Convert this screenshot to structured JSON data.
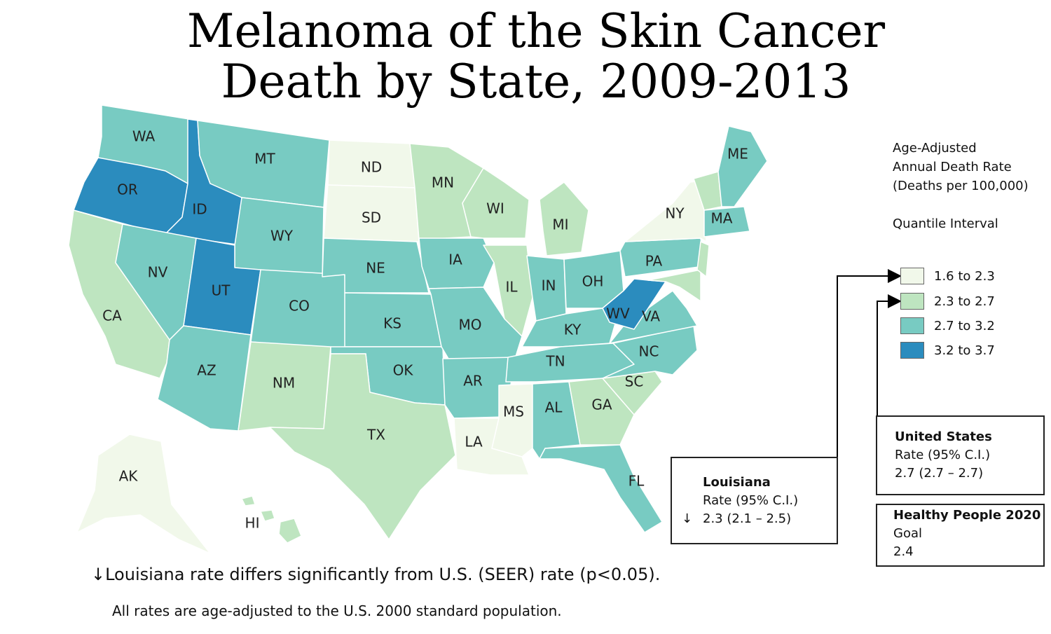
{
  "title": {
    "line1": "Melanoma of the Skin Cancer",
    "line2": "Death by State, 2009-2013"
  },
  "legend": {
    "title_line1": "Age-Adjusted",
    "title_line2": "Annual Death Rate",
    "title_line3": "(Deaths per 100,000)",
    "interval_label": "Quantile Interval",
    "classes": [
      {
        "label": "1.6 to 2.3",
        "color": "#f1f8ea"
      },
      {
        "label": "2.3 to 2.7",
        "color": "#bee5c0"
      },
      {
        "label": "2.7 to 3.2",
        "color": "#78cbc2"
      },
      {
        "label": "3.2 to 3.7",
        "color": "#2b8cbe"
      }
    ]
  },
  "louisiana_box": {
    "heading": "Louisiana",
    "rate_label": "Rate (95% C.I.)",
    "arrow": "↓",
    "value": "2.3 (2.1 – 2.5)"
  },
  "us_box": {
    "heading": "United States",
    "rate_label": "Rate (95% C.I.)",
    "value": "2.7 (2.7 – 2.7)"
  },
  "hp_box": {
    "heading": "Healthy People 2020",
    "goal_label": "Goal",
    "value": "2.4"
  },
  "footnotes": {
    "significance": "↓Louisiana rate differs significantly from U.S. (SEER) rate (p<0.05).",
    "standard": "All rates are age-adjusted to the U.S. 2000 standard population."
  },
  "states": [
    {
      "abbr": "WA",
      "class": 2
    },
    {
      "abbr": "OR",
      "class": 3
    },
    {
      "abbr": "CA",
      "class": 1
    },
    {
      "abbr": "ID",
      "class": 3
    },
    {
      "abbr": "NV",
      "class": 2
    },
    {
      "abbr": "MT",
      "class": 2
    },
    {
      "abbr": "WY",
      "class": 2
    },
    {
      "abbr": "UT",
      "class": 3
    },
    {
      "abbr": "AZ",
      "class": 2
    },
    {
      "abbr": "CO",
      "class": 2
    },
    {
      "abbr": "NM",
      "class": 1
    },
    {
      "abbr": "ND",
      "class": 0
    },
    {
      "abbr": "SD",
      "class": 0
    },
    {
      "abbr": "NE",
      "class": 2
    },
    {
      "abbr": "KS",
      "class": 2
    },
    {
      "abbr": "OK",
      "class": 2
    },
    {
      "abbr": "TX",
      "class": 1
    },
    {
      "abbr": "MN",
      "class": 1
    },
    {
      "abbr": "IA",
      "class": 2
    },
    {
      "abbr": "MO",
      "class": 2
    },
    {
      "abbr": "AR",
      "class": 2
    },
    {
      "abbr": "LA",
      "class": 0
    },
    {
      "abbr": "WI",
      "class": 1
    },
    {
      "abbr": "IL",
      "class": 1
    },
    {
      "abbr": "MI",
      "class": 1
    },
    {
      "abbr": "IN",
      "class": 2
    },
    {
      "abbr": "OH",
      "class": 2
    },
    {
      "abbr": "KY",
      "class": 2
    },
    {
      "abbr": "TN",
      "class": 2
    },
    {
      "abbr": "MS",
      "class": 0
    },
    {
      "abbr": "AL",
      "class": 2
    },
    {
      "abbr": "GA",
      "class": 1
    },
    {
      "abbr": "FL",
      "class": 2
    },
    {
      "abbr": "SC",
      "class": 1
    },
    {
      "abbr": "NC",
      "class": 2
    },
    {
      "abbr": "VA",
      "class": 2
    },
    {
      "abbr": "WV",
      "class": 3
    },
    {
      "abbr": "PA",
      "class": 2
    },
    {
      "abbr": "NY",
      "class": 0
    },
    {
      "abbr": "ME",
      "class": 2
    },
    {
      "abbr": "MA",
      "class": 2
    },
    {
      "abbr": "AK",
      "class": 0
    },
    {
      "abbr": "HI",
      "class": 1
    }
  ]
}
